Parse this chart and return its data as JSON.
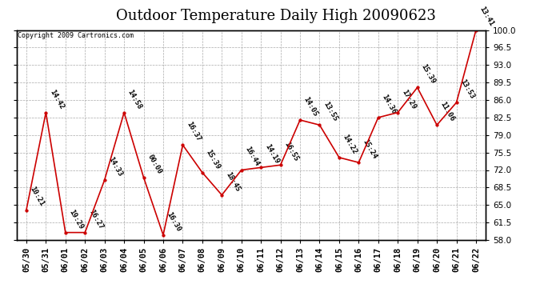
{
  "title": "Outdoor Temperature Daily High 20090623",
  "copyright": "Copyright 2009 Cartronics.com",
  "dates": [
    "05/30",
    "05/31",
    "06/01",
    "06/02",
    "06/03",
    "06/04",
    "06/05",
    "06/06",
    "06/07",
    "06/08",
    "06/09",
    "06/10",
    "06/11",
    "06/12",
    "06/13",
    "06/14",
    "06/15",
    "06/16",
    "06/17",
    "06/18",
    "06/19",
    "06/20",
    "06/21",
    "06/22"
  ],
  "temps": [
    64.0,
    83.5,
    59.5,
    59.5,
    70.0,
    83.5,
    70.5,
    59.0,
    77.0,
    71.5,
    67.0,
    72.0,
    72.5,
    73.0,
    82.0,
    81.0,
    74.5,
    73.5,
    82.5,
    83.5,
    88.5,
    81.0,
    85.5,
    100.0
  ],
  "labels": [
    "10:21",
    "14:42",
    "19:29",
    "16:27",
    "14:33",
    "14:58",
    "00:00",
    "16:30",
    "16:37",
    "15:39",
    "18:45",
    "16:44",
    "14:19",
    "16:55",
    "14:05",
    "13:55",
    "14:22",
    "15:24",
    "14:36",
    "17:29",
    "15:39",
    "11:06",
    "13:53",
    "13:41"
  ],
  "line_color": "#cc0000",
  "marker_color": "#cc0000",
  "bg_color": "#ffffff",
  "plot_bg": "#ffffff",
  "grid_color": "#aaaaaa",
  "ylim": [
    58.0,
    100.0
  ],
  "yticks": [
    58.0,
    61.5,
    65.0,
    68.5,
    72.0,
    75.5,
    79.0,
    82.5,
    86.0,
    89.5,
    93.0,
    96.5,
    100.0
  ],
  "title_fontsize": 13,
  "label_fontsize": 6.5,
  "tick_fontsize": 7.5
}
